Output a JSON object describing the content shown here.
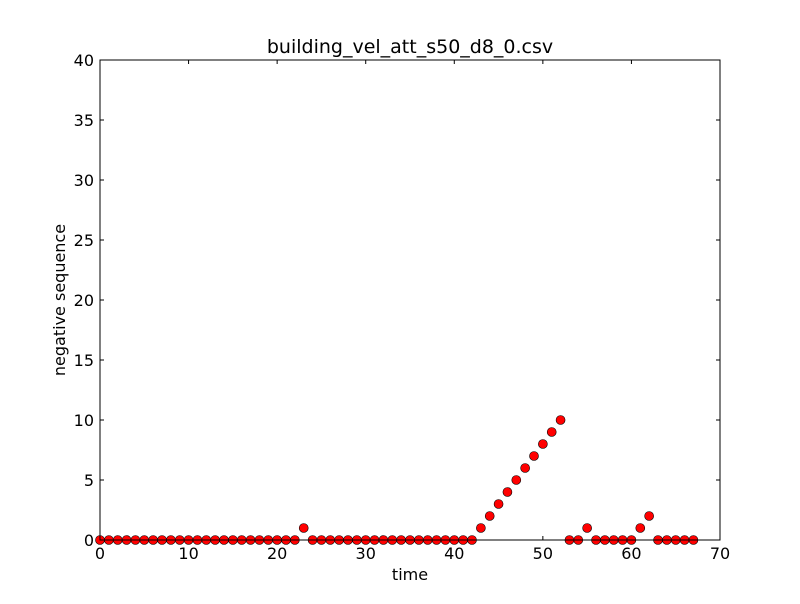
{
  "chart_data": {
    "type": "scatter",
    "title": "building_vel_att_s50_d8_0.csv",
    "xlabel": "time",
    "ylabel": "negative sequence",
    "xlim": [
      0,
      70
    ],
    "ylim": [
      0,
      40
    ],
    "xticks": [
      0,
      10,
      20,
      30,
      40,
      50,
      60,
      70
    ],
    "yticks": [
      0,
      5,
      10,
      15,
      20,
      25,
      30,
      35,
      40
    ],
    "grid": false,
    "marker_color": "#ff0000",
    "marker_edge_color": "#000000",
    "x": [
      0,
      1,
      2,
      3,
      4,
      5,
      6,
      7,
      8,
      9,
      10,
      11,
      12,
      13,
      14,
      15,
      16,
      17,
      18,
      19,
      20,
      21,
      22,
      23,
      24,
      25,
      26,
      27,
      28,
      29,
      30,
      31,
      32,
      33,
      34,
      35,
      36,
      37,
      38,
      39,
      40,
      41,
      42,
      43,
      44,
      45,
      46,
      47,
      48,
      49,
      50,
      51,
      52,
      53,
      54,
      55,
      56,
      57,
      58,
      59,
      60,
      61,
      62,
      63,
      64,
      65,
      66,
      67
    ],
    "y": [
      0,
      0,
      0,
      0,
      0,
      0,
      0,
      0,
      0,
      0,
      0,
      0,
      0,
      0,
      0,
      0,
      0,
      0,
      0,
      0,
      0,
      0,
      0,
      1,
      0,
      0,
      0,
      0,
      0,
      0,
      0,
      0,
      0,
      0,
      0,
      0,
      0,
      0,
      0,
      0,
      0,
      0,
      0,
      1,
      2,
      3,
      4,
      5,
      6,
      7,
      8,
      9,
      10,
      0,
      0,
      1,
      0,
      0,
      0,
      0,
      0,
      1,
      2,
      0,
      0,
      0,
      0,
      0
    ]
  }
}
